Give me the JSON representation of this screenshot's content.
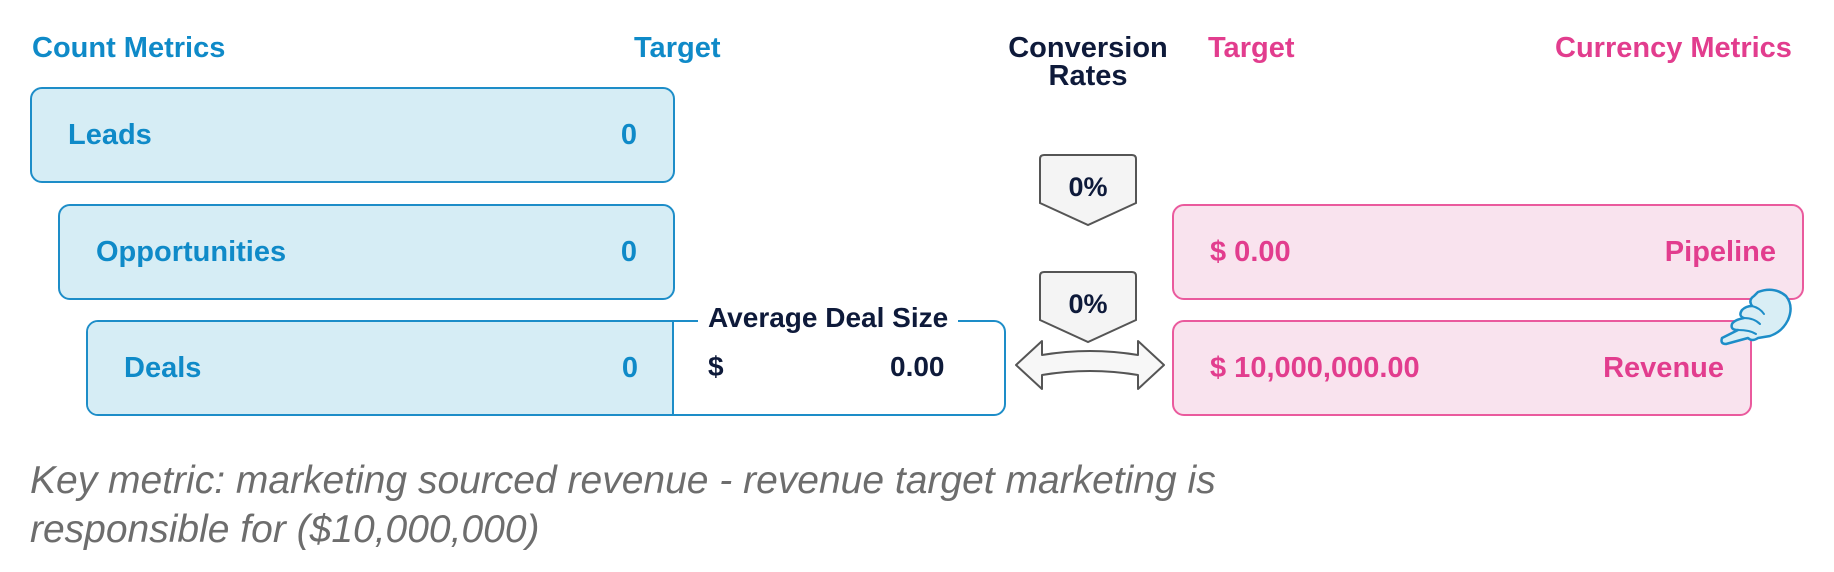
{
  "headers": {
    "count_metrics": "Count Metrics",
    "target_left": "Target",
    "conversion_rates": "Conversion Rates",
    "target_right": "Target",
    "currency_metrics": "Currency Metrics"
  },
  "count_metrics": [
    {
      "label": "Leads",
      "target": "0"
    },
    {
      "label": "Opportunities",
      "target": "0"
    },
    {
      "label": "Deals",
      "target": "0"
    }
  ],
  "conversion_rates": [
    "0%",
    "0%"
  ],
  "average_deal_size": {
    "title": "Average Deal Size",
    "currency": "$",
    "value": "0.00"
  },
  "currency_metrics": [
    {
      "label": "Pipeline",
      "target": "$ 0.00"
    },
    {
      "label": "Revenue",
      "target": "$ 10,000,000.00"
    }
  ],
  "note": "Key metric: marketing sourced revenue - revenue target marketing is responsible for ($10,000,000)",
  "icons": {
    "arrow": "double-arrow-icon",
    "pointer": "pointing-hand-icon"
  },
  "colors": {
    "blue": "#0f8ac8",
    "pink": "#e23d8e",
    "navy": "#0e1a3a",
    "blue_fill": "#d6edf5",
    "pink_fill": "#f9e3ee"
  }
}
